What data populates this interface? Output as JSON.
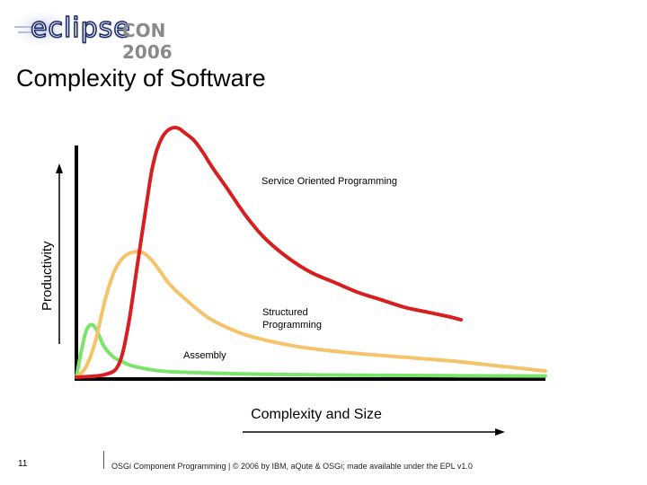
{
  "header": {
    "logo_text_eclipse": "eclipse",
    "logo_text_con": "CON 2006"
  },
  "slide": {
    "title": "Complexity of Software"
  },
  "colors": {
    "service_oriented": "#d81f1f",
    "structured": "#f5c46a",
    "assembly": "#7be46a",
    "axis": "#000000"
  },
  "chart_data": {
    "type": "line",
    "title": "",
    "xlabel": "Complexity and Size",
    "ylabel": "Productivity",
    "xlim": [
      0,
      100
    ],
    "ylim": [
      0,
      100
    ],
    "grid": false,
    "legend": "none",
    "series": [
      {
        "name": "Service Oriented Programming",
        "label_lines": [
          "Service Oriented Programming"
        ],
        "x": [
          0,
          6,
          9,
          11,
          13,
          15,
          16,
          17,
          18,
          19,
          20,
          21,
          22,
          23,
          25,
          27,
          29,
          32,
          36,
          40,
          45,
          50,
          55,
          60,
          65,
          70,
          75,
          80,
          82
        ],
        "y": [
          0,
          1,
          5,
          20,
          45,
          70,
          82,
          90,
          95,
          98,
          99.5,
          100,
          99.5,
          98,
          95,
          90,
          84,
          76,
          65,
          56,
          48,
          42,
          38,
          34,
          31,
          28,
          26,
          24,
          23
        ]
      },
      {
        "name": "Structured Programming",
        "label_lines": [
          "Structured",
          "Programming"
        ],
        "x": [
          0,
          2,
          4,
          6,
          8,
          10,
          12,
          14,
          16,
          18,
          20,
          24,
          28,
          32,
          36,
          40,
          45,
          50,
          60,
          70,
          80,
          90,
          100
        ],
        "y": [
          0,
          4,
          14,
          30,
          42,
          48,
          50,
          50,
          47,
          42,
          37,
          30,
          24,
          20,
          17,
          15,
          13,
          11.5,
          9.5,
          8,
          6.5,
          4.5,
          2.5
        ]
      },
      {
        "name": "Assembly",
        "label_lines": [
          "Assembly"
        ],
        "x": [
          0,
          1,
          2,
          3,
          4,
          5,
          6,
          8,
          10,
          12,
          16,
          20,
          30,
          40,
          60,
          80,
          100
        ],
        "y": [
          0,
          10,
          18,
          21,
          20,
          16,
          12,
          8,
          6,
          4.5,
          3,
          2.2,
          1.6,
          1.2,
          0.8,
          0.6,
          0.5
        ]
      }
    ]
  },
  "footer": {
    "slide_number": "11",
    "text": "OSGi Component Programming | © 2006 by IBM, aQute & OSGi; made available under the EPL v1.0"
  }
}
